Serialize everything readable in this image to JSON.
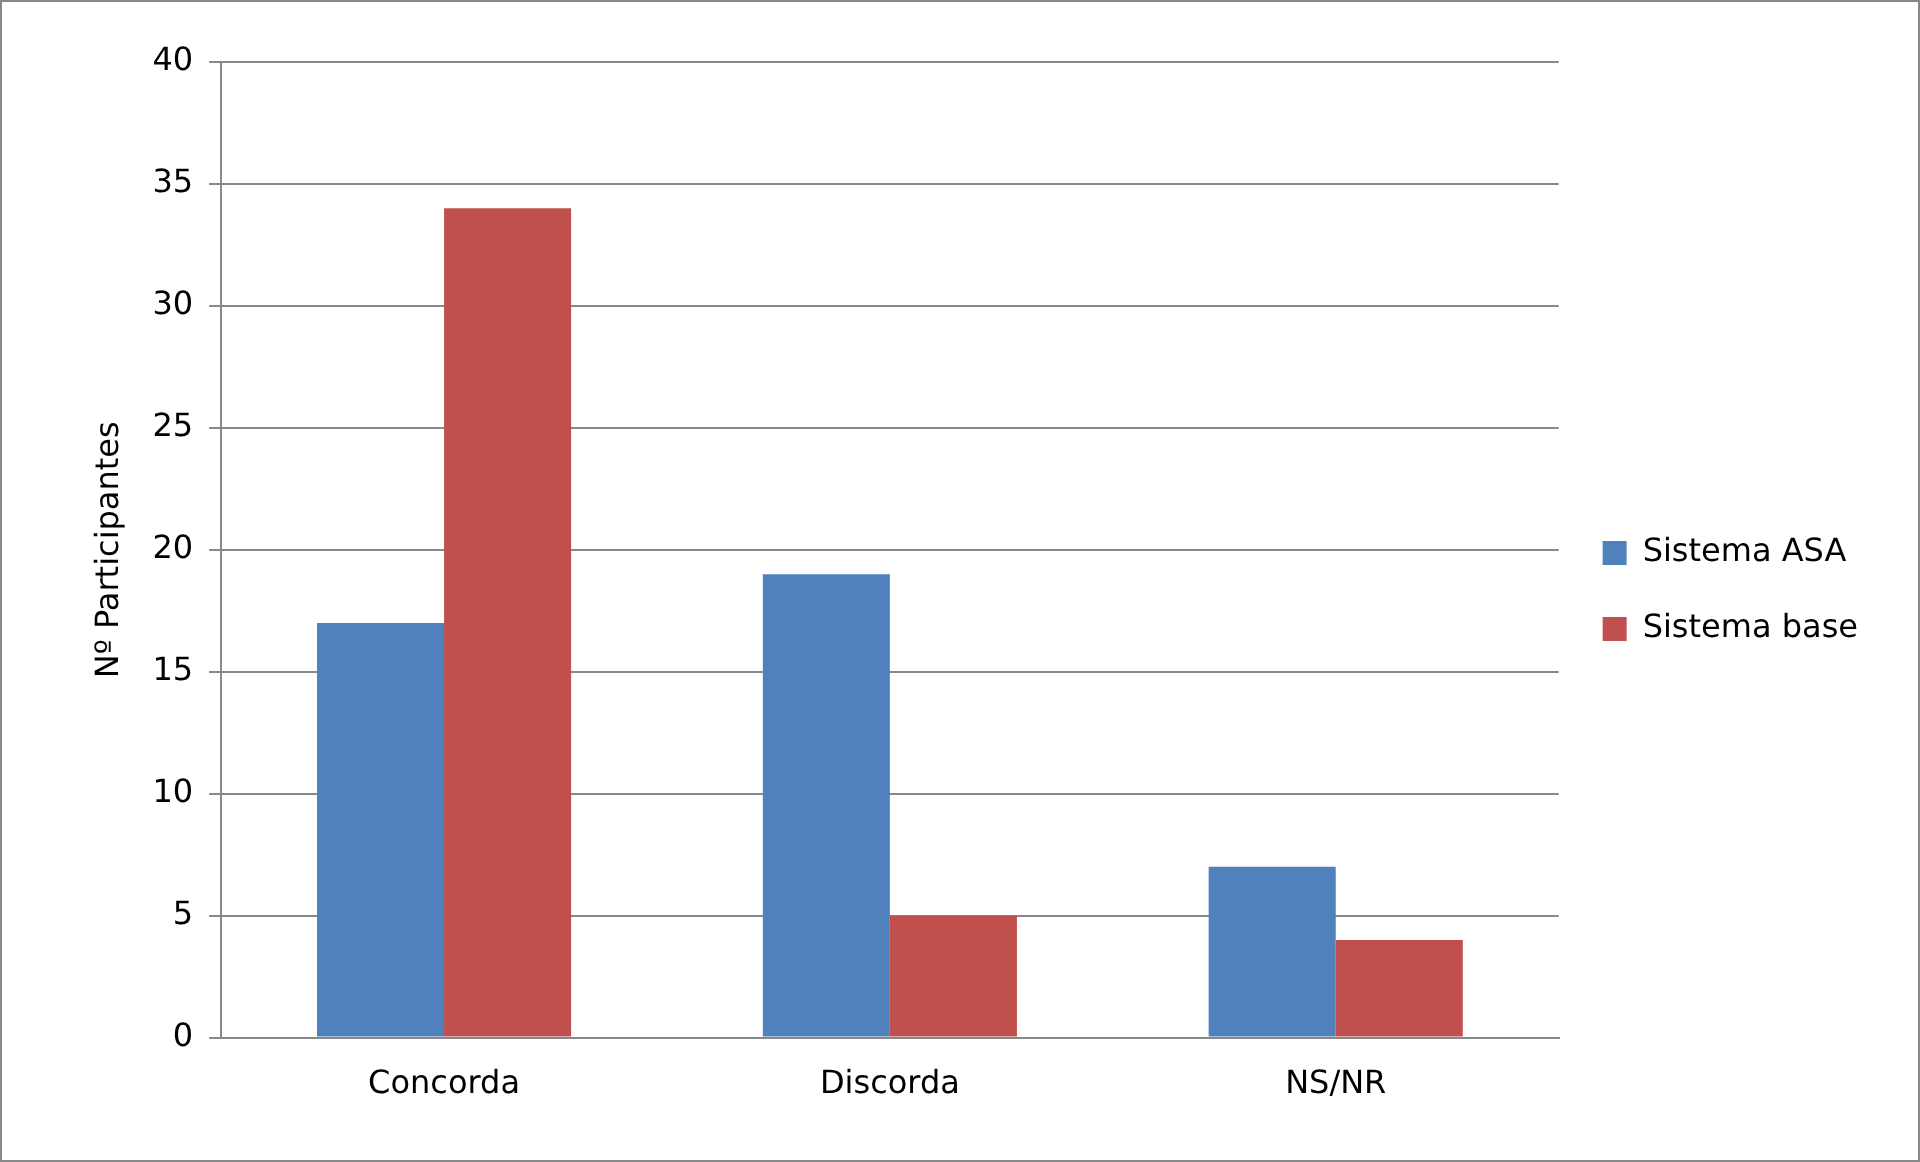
{
  "chart_data": {
    "type": "bar",
    "ylabel": "Nº Participantes",
    "categories": [
      "Concorda",
      "Discorda",
      "NS/NR"
    ],
    "series": [
      {
        "name": "Sistema ASA",
        "color": "#4f81bd",
        "values": [
          17,
          19,
          7
        ]
      },
      {
        "name": "Sistema base",
        "color": "#c0504d",
        "values": [
          34,
          5,
          4
        ]
      }
    ],
    "ylim": [
      0,
      40
    ],
    "yticks": [
      0,
      5,
      10,
      15,
      20,
      25,
      30,
      35,
      40
    ],
    "grid": "y",
    "legend": "right"
  }
}
